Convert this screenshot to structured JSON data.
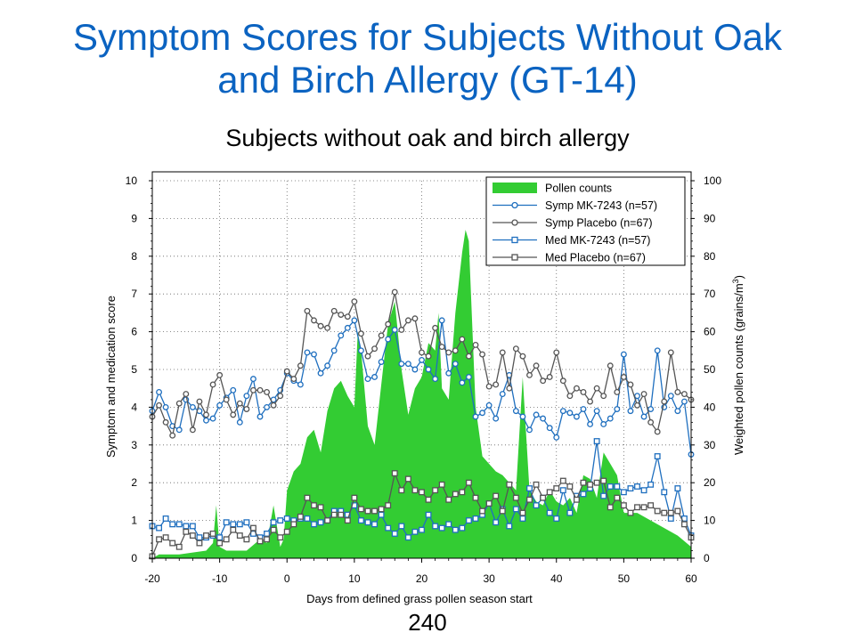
{
  "slide": {
    "title_line1": "Symptom Scores for Subjects Without Oak",
    "title_line2": "and Birch Allergy (GT-14)",
    "page_number": "240"
  },
  "colors": {
    "pollen": "#33CC33",
    "mk": "#1F6FBF",
    "placebo": "#555555",
    "title": "#0B63C1"
  },
  "chart_data": {
    "type": "line",
    "title": "Subjects without oak and birch allergy",
    "xlabel": "Days from defined grass pollen season start",
    "ylabel": "Symptom and medication score",
    "y2label": "Weighted pollen counts (grains/m3)",
    "xlim": [
      -20,
      60
    ],
    "ylim": [
      0,
      10
    ],
    "y2lim": [
      0,
      100
    ],
    "x_ticks": [
      -20,
      -10,
      0,
      10,
      20,
      30,
      40,
      50,
      60
    ],
    "y_ticks": [
      0,
      1,
      2,
      3,
      4,
      5,
      6,
      7,
      8,
      9,
      10
    ],
    "y2_ticks": [
      0,
      10,
      20,
      30,
      40,
      50,
      60,
      70,
      80,
      90,
      100
    ],
    "grid": true,
    "legend_position": "top-right",
    "area_series": {
      "name": "Pollen counts",
      "axis": "right",
      "x": [
        -20,
        -19,
        -16,
        -12,
        -11,
        -10.5,
        -10,
        -9,
        -6,
        -4,
        -3,
        -2,
        -1,
        -0.5,
        0,
        1,
        2,
        3,
        4,
        5,
        6,
        7,
        8,
        9,
        10,
        10.5,
        11,
        12,
        13,
        14,
        15,
        16,
        17,
        18,
        19,
        20,
        21,
        22,
        22.5,
        23,
        24,
        25,
        26,
        26.5,
        27,
        28,
        29,
        30,
        31,
        32,
        33,
        34,
        35,
        36,
        37,
        38,
        39,
        40,
        41,
        42,
        43,
        44,
        45,
        46,
        47,
        48,
        49,
        50,
        52,
        54,
        56,
        58,
        60
      ],
      "values": [
        0,
        1,
        1,
        2,
        4,
        14,
        3,
        2,
        2,
        5,
        4,
        14,
        3,
        5,
        18,
        23,
        25,
        32,
        34,
        28,
        39,
        45,
        47,
        43,
        40,
        60,
        55,
        35,
        30,
        46,
        62,
        68,
        50,
        38,
        45,
        48,
        57,
        55,
        65,
        45,
        42,
        65,
        81,
        87,
        84,
        40,
        27,
        25,
        23,
        22,
        20,
        18,
        48,
        18,
        15,
        14,
        18,
        15,
        14,
        16,
        12,
        22,
        21,
        16,
        28,
        25,
        22,
        12,
        12,
        10,
        8,
        6,
        3
      ]
    },
    "x": [
      -20,
      -19,
      -18,
      -17,
      -16,
      -15,
      -14,
      -13,
      -12,
      -11,
      -10,
      -9,
      -8,
      -7,
      -6,
      -5,
      -4,
      -3,
      -2,
      -1,
      0,
      1,
      2,
      3,
      4,
      5,
      6,
      7,
      8,
      9,
      10,
      11,
      12,
      13,
      14,
      15,
      16,
      17,
      18,
      19,
      20,
      21,
      22,
      23,
      24,
      25,
      26,
      27,
      28,
      29,
      30,
      31,
      32,
      33,
      34,
      35,
      36,
      37,
      38,
      39,
      40,
      41,
      42,
      43,
      44,
      45,
      46,
      47,
      48,
      49,
      50,
      51,
      52,
      53,
      54,
      55,
      56,
      57,
      58,
      59,
      60
    ],
    "series": [
      {
        "name": "Symp MK-7243 (n=57)",
        "marker": "circle",
        "values": [
          3.9,
          4.4,
          4.0,
          3.5,
          3.4,
          4.2,
          4.0,
          3.9,
          3.65,
          3.7,
          4.05,
          4.25,
          4.45,
          3.6,
          4.3,
          4.75,
          3.75,
          4.0,
          4.2,
          4.45,
          4.9,
          4.7,
          4.6,
          5.45,
          5.4,
          4.9,
          5.1,
          5.5,
          5.9,
          6.1,
          6.3,
          5.5,
          4.75,
          4.8,
          5.2,
          5.8,
          6.05,
          5.15,
          5.15,
          5.0,
          5.25,
          5.0,
          4.75,
          6.3,
          4.9,
          5.15,
          4.65,
          4.8,
          3.75,
          3.85,
          4.05,
          3.7,
          4.35,
          4.85,
          3.9,
          3.75,
          3.4,
          3.8,
          3.7,
          3.45,
          3.2,
          3.9,
          3.85,
          3.75,
          3.95,
          3.55,
          3.9,
          3.55,
          3.7,
          3.95,
          5.4,
          3.9,
          4.3,
          3.75,
          3.95,
          5.5,
          4.0,
          4.3,
          3.9,
          4.15,
          2.75
        ]
      },
      {
        "name": "Symp Placebo (n=67)",
        "marker": "circle",
        "values": [
          3.75,
          4.05,
          3.6,
          3.25,
          4.1,
          4.35,
          3.4,
          4.15,
          3.8,
          4.6,
          4.85,
          4.2,
          3.8,
          4.1,
          3.95,
          4.45,
          4.45,
          4.4,
          4.05,
          4.3,
          4.95,
          4.75,
          5.1,
          6.55,
          6.3,
          6.15,
          6.1,
          6.55,
          6.45,
          6.4,
          6.8,
          5.95,
          5.35,
          5.55,
          5.9,
          6.2,
          7.05,
          6.05,
          6.3,
          6.35,
          5.45,
          5.35,
          6.1,
          5.6,
          5.45,
          5.5,
          5.8,
          5.35,
          5.65,
          5.4,
          4.55,
          4.6,
          5.45,
          4.5,
          5.55,
          5.35,
          4.85,
          5.1,
          4.7,
          4.8,
          5.45,
          4.7,
          4.3,
          4.5,
          4.4,
          4.15,
          4.5,
          4.3,
          5.1,
          4.4,
          4.8,
          4.6,
          4.05,
          4.35,
          3.6,
          3.35,
          4.15,
          5.45,
          4.4,
          4.35,
          4.2
        ]
      },
      {
        "name": "Med MK-7243 (n=57)",
        "marker": "square",
        "values": [
          0.85,
          0.8,
          1.05,
          0.9,
          0.9,
          0.85,
          0.85,
          0.55,
          0.55,
          0.6,
          0.55,
          0.95,
          0.9,
          0.9,
          0.95,
          0.65,
          0.55,
          0.65,
          0.95,
          1.0,
          1.05,
          1.0,
          1.05,
          1.05,
          0.9,
          0.95,
          1.0,
          1.25,
          1.25,
          1.15,
          1.4,
          1.0,
          0.95,
          0.9,
          1.15,
          0.8,
          0.65,
          0.85,
          0.55,
          0.7,
          0.75,
          1.15,
          0.85,
          0.8,
          0.9,
          0.75,
          0.8,
          1.0,
          1.05,
          1.15,
          1.45,
          0.95,
          1.3,
          0.85,
          1.3,
          1.05,
          1.85,
          1.4,
          1.6,
          1.2,
          1.05,
          1.8,
          1.2,
          1.65,
          1.7,
          1.85,
          3.1,
          1.65,
          1.9,
          1.9,
          1.75,
          1.85,
          1.9,
          1.8,
          1.95,
          2.7,
          1.75,
          1.05,
          1.85,
          1.05,
          0.6
        ]
      },
      {
        "name": "Med Placebo (n=67)",
        "marker": "square",
        "values": [
          0.05,
          0.5,
          0.55,
          0.4,
          0.3,
          0.7,
          0.6,
          0.4,
          0.6,
          0.65,
          0.4,
          0.5,
          0.75,
          0.6,
          0.5,
          0.8,
          0.45,
          0.5,
          0.75,
          0.55,
          0.7,
          0.9,
          1.1,
          1.6,
          1.4,
          1.35,
          1.0,
          1.15,
          1.15,
          1.0,
          1.6,
          1.3,
          1.25,
          1.25,
          1.3,
          1.4,
          2.25,
          1.8,
          2.1,
          1.8,
          1.75,
          1.55,
          1.8,
          1.95,
          1.55,
          1.7,
          1.75,
          2.0,
          1.6,
          1.25,
          1.45,
          1.65,
          1.25,
          1.95,
          1.6,
          1.2,
          1.55,
          1.95,
          1.6,
          1.75,
          1.85,
          2.05,
          1.9,
          1.55,
          2.0,
          1.95,
          2.0,
          2.05,
          1.35,
          1.6,
          1.4,
          1.2,
          1.35,
          1.35,
          1.4,
          1.25,
          1.2,
          1.2,
          1.25,
          0.9,
          0.55
        ]
      }
    ]
  }
}
